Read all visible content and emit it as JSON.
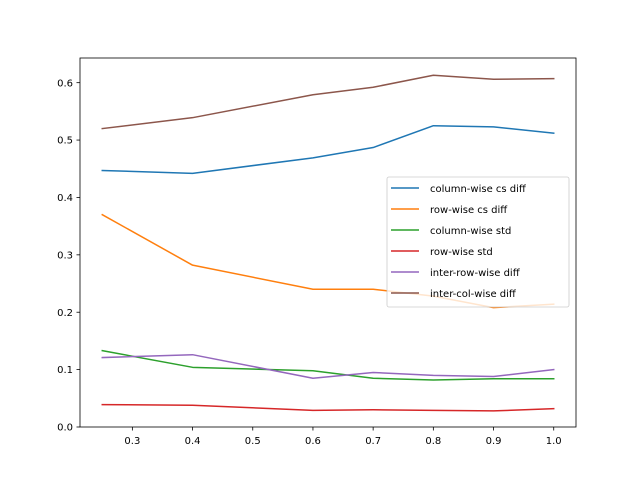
{
  "chart_data": {
    "type": "line",
    "title": "",
    "xlabel": "",
    "ylabel": "",
    "x": [
      0.25,
      0.4,
      0.6,
      0.7,
      0.8,
      0.9,
      1.0
    ],
    "xlim": [
      0.213,
      1.037
    ],
    "ylim": [
      0.0,
      0.643
    ],
    "xticks": [
      0.3,
      0.4,
      0.5,
      0.6,
      0.7,
      0.8,
      0.9,
      1.0
    ],
    "xtick_labels": [
      "0.3",
      "0.4",
      "0.5",
      "0.6",
      "0.7",
      "0.8",
      "0.9",
      "1.0"
    ],
    "yticks": [
      0.0,
      0.1,
      0.2,
      0.3,
      0.4,
      0.5,
      0.6
    ],
    "ytick_labels": [
      "0.0",
      "0.1",
      "0.2",
      "0.3",
      "0.4",
      "0.5",
      "0.6"
    ],
    "grid": false,
    "legend_position": "center-right",
    "series": [
      {
        "name": "column-wise cs diff",
        "color": "#1f77b4",
        "values": [
          0.447,
          0.442,
          0.469,
          0.487,
          0.525,
          0.523,
          0.512
        ]
      },
      {
        "name": "row-wise cs diff",
        "color": "#ff7f0e",
        "values": [
          0.37,
          0.282,
          0.24,
          0.24,
          0.228,
          0.208,
          0.214
        ]
      },
      {
        "name": "column-wise std",
        "color": "#2ca02c",
        "values": [
          0.133,
          0.104,
          0.098,
          0.085,
          0.082,
          0.084,
          0.084
        ]
      },
      {
        "name": "row-wise std",
        "color": "#d62728",
        "values": [
          0.039,
          0.038,
          0.029,
          0.03,
          0.029,
          0.028,
          0.032
        ]
      },
      {
        "name": "inter-row-wise diff",
        "color": "#9467bd",
        "values": [
          0.121,
          0.126,
          0.085,
          0.095,
          0.09,
          0.088,
          0.1
        ]
      },
      {
        "name": "inter-col-wise diff",
        "color": "#8c564b",
        "values": [
          0.52,
          0.539,
          0.579,
          0.592,
          0.613,
          0.606,
          0.607
        ]
      }
    ]
  }
}
